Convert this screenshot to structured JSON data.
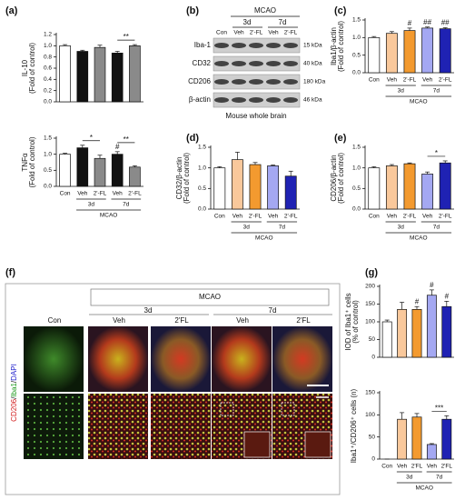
{
  "panel_labels": {
    "a": "(a)",
    "b": "(b)",
    "c": "(c)",
    "d": "(d)",
    "e": "(e)",
    "f": "(f)",
    "g": "(g)"
  },
  "blot": {
    "title": "MCAO",
    "groups": [
      "3d",
      "7d"
    ],
    "lanes": [
      "Con",
      "Veh",
      "2'-FL",
      "Veh",
      "2'-FL"
    ],
    "rows": [
      {
        "label": "Iba-1",
        "size": "15 kDa"
      },
      {
        "label": "CD32",
        "size": "40 kDa"
      },
      {
        "label": "CD206",
        "size": "180 kDa"
      },
      {
        "label": "β-actin",
        "size": "46 kDa"
      }
    ],
    "footer": "Mouse whole brain"
  },
  "micrograph": {
    "title": "MCAO",
    "groups": [
      "3d",
      "7d"
    ],
    "columns": [
      "Con",
      "Veh",
      "2'FL",
      "Veh",
      "2'FL"
    ],
    "stain": [
      "CD206",
      "/",
      "Iba1",
      "/",
      "DAPI"
    ]
  },
  "chart_data": [
    {
      "type": "bar",
      "ylabel": [
        "IL-10",
        "(Fold of control)"
      ],
      "categories": [
        null,
        null,
        null,
        null,
        null
      ],
      "values": [
        1.0,
        0.9,
        0.97,
        0.87,
        1.0
      ],
      "errors": [
        0.02,
        0.02,
        0.04,
        0.03,
        0.02
      ],
      "colors": [
        "#ffffff",
        "#111111",
        "#8a8a8a",
        "#111111",
        "#8a8a8a"
      ],
      "ylim": [
        0,
        1.2
      ],
      "yticks": [
        {
          "value": 0,
          "label": "0.0"
        },
        0.2,
        0.4,
        0.6,
        0.8,
        {
          "value": 1,
          "label": "1.0"
        },
        1.2
      ],
      "annotations": [
        "**"
      ]
    },
    {
      "type": "bar",
      "ylabel": [
        "TNFα",
        "(Fold of control)"
      ],
      "categories": [
        "Con",
        "Veh",
        "2'-FL",
        "Veh",
        "2'-FL"
      ],
      "group_labels": [
        "3d",
        "7d"
      ],
      "group_title": "MCAO",
      "values": [
        1.0,
        1.2,
        0.87,
        1.0,
        0.6
      ],
      "errors": [
        0.03,
        0.08,
        0.1,
        0.08,
        0.04
      ],
      "colors": [
        "#ffffff",
        "#111111",
        "#8a8a8a",
        "#111111",
        "#8a8a8a"
      ],
      "ylim": [
        0,
        1.5
      ],
      "yticks": [
        {
          "value": 0,
          "label": "0.0"
        },
        0.5,
        {
          "value": 1,
          "label": "1.0"
        },
        1.5
      ],
      "annotations": [
        "*",
        "**",
        "#"
      ]
    },
    {
      "type": "bar",
      "ylabel": [
        "Iba1/β-actin",
        "(Fold of control)"
      ],
      "categories": [
        "Con",
        "Veh",
        "2'-FL",
        "Veh",
        "2'-FL"
      ],
      "group_labels": [
        "3d",
        "7d"
      ],
      "group_title": "MCAO",
      "values": [
        1.0,
        1.12,
        1.2,
        1.27,
        1.25
      ],
      "errors": [
        0.03,
        0.05,
        0.07,
        0.03,
        0.03
      ],
      "colors": [
        "#ffffff",
        "#f9c89b",
        "#f39a2f",
        "#a4a8f2",
        "#1f22b3"
      ],
      "ylim": [
        0,
        1.5
      ],
      "yticks": [
        {
          "value": 0,
          "label": "0.0"
        },
        0.5,
        {
          "value": 1,
          "label": "1.0"
        },
        1.5
      ],
      "annotations": [
        "#",
        "##",
        "##"
      ]
    },
    {
      "type": "bar",
      "ylabel": [
        "CD32/β-actin",
        "(Fold of control)"
      ],
      "categories": [
        "Con",
        "Veh",
        "2'-FL",
        "Veh",
        "2'-FL"
      ],
      "group_labels": [
        "3d",
        "7d"
      ],
      "group_title": "MCAO",
      "values": [
        1.0,
        1.2,
        1.08,
        1.05,
        0.8
      ],
      "errors": [
        0.03,
        0.18,
        0.05,
        0.02,
        0.12
      ],
      "colors": [
        "#ffffff",
        "#f9c89b",
        "#f39a2f",
        "#a4a8f2",
        "#1f22b3"
      ],
      "ylim": [
        0,
        1.5
      ],
      "yticks": [
        {
          "value": 0,
          "label": "0.0"
        },
        0.5,
        {
          "value": 1,
          "label": "1.0"
        },
        1.5
      ],
      "annotations": []
    },
    {
      "type": "bar",
      "ylabel": [
        "CD206/β-actin",
        "(Fold of control)"
      ],
      "categories": [
        "Con",
        "Veh",
        "2'-FL",
        "Veh",
        "2'-FL"
      ],
      "group_labels": [
        "3d",
        "7d"
      ],
      "group_title": "MCAO",
      "values": [
        1.0,
        1.05,
        1.1,
        0.85,
        1.12
      ],
      "errors": [
        0.03,
        0.03,
        0.02,
        0.05,
        0.05
      ],
      "colors": [
        "#ffffff",
        "#f9c89b",
        "#f39a2f",
        "#a4a8f2",
        "#1f22b3"
      ],
      "ylim": [
        0,
        1.5
      ],
      "yticks": [
        {
          "value": 0,
          "label": "0.0"
        },
        0.5,
        {
          "value": 1,
          "label": "1.0"
        },
        1.5
      ],
      "annotations": [
        "*"
      ]
    },
    {
      "type": "bar",
      "ylabel": [
        "IOD of Iba1⁺ cells",
        "(% of control)"
      ],
      "categories": [
        null,
        null,
        null,
        null,
        null
      ],
      "values": [
        100,
        135,
        135,
        175,
        143
      ],
      "errors": [
        5,
        20,
        8,
        15,
        15
      ],
      "colors": [
        "#ffffff",
        "#f9c89b",
        "#f39a2f",
        "#a4a8f2",
        "#1f22b3"
      ],
      "ylim": [
        0,
        200
      ],
      "yticks": [
        0,
        50,
        100,
        150,
        200
      ],
      "annotations": [
        "#",
        "#",
        "#"
      ]
    },
    {
      "type": "bar",
      "ylabel": [
        "Iba1⁺/CD206⁺ cells (n)"
      ],
      "categories": [
        "Con",
        "Veh",
        "2'FL",
        "Veh",
        "2'FL"
      ],
      "group_labels": [
        "3d",
        "7d"
      ],
      "group_title": "MCAO",
      "values": [
        0,
        90,
        95,
        33,
        90
      ],
      "errors": [
        0,
        15,
        8,
        2,
        8
      ],
      "colors": [
        "#ffffff",
        "#f9c89b",
        "#f39a2f",
        "#a4a8f2",
        "#1f22b3"
      ],
      "ylim": [
        0,
        150
      ],
      "yticks": [
        0,
        50,
        100,
        150
      ],
      "annotations": [
        "***"
      ]
    }
  ]
}
